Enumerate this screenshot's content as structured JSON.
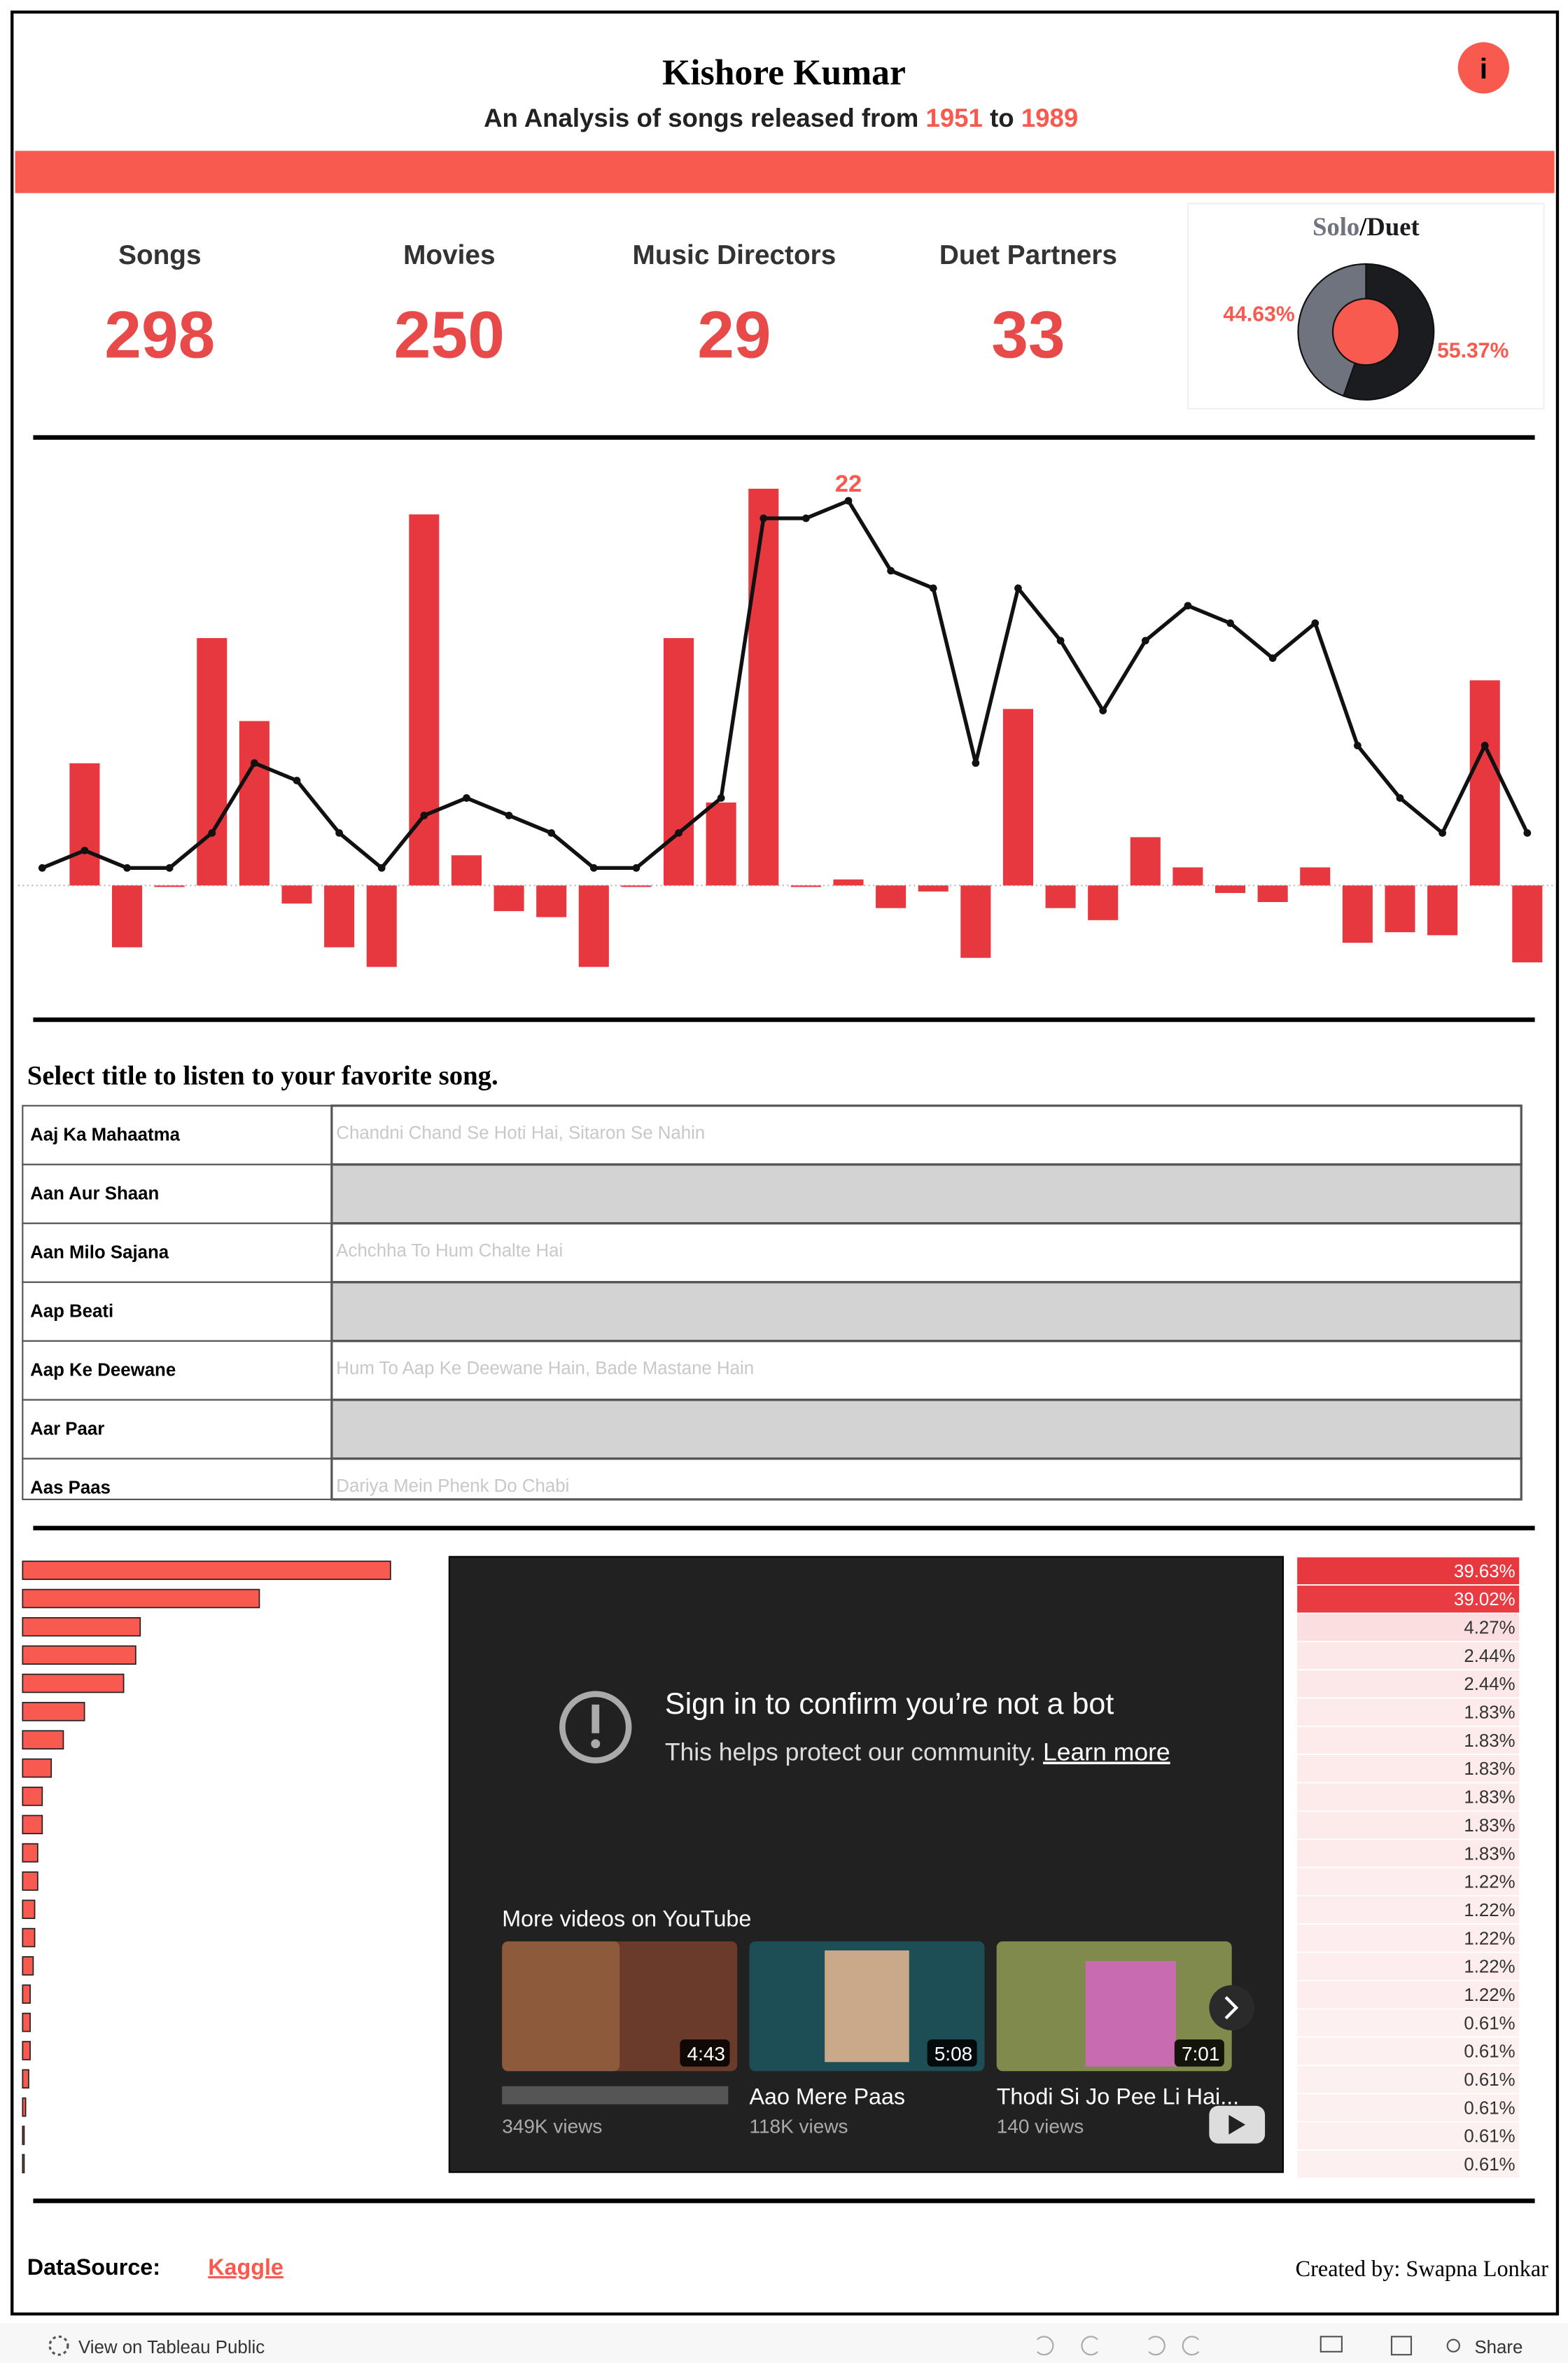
{
  "header": {
    "title": "Kishore Kumar",
    "subtitle": "An Analysis of songs released from",
    "start_year": 1951,
    "connector": "to",
    "end_year": 1989,
    "info_icon": "i"
  },
  "kpis": [
    {
      "label": "Songs",
      "value": 298
    },
    {
      "label": "Movies",
      "value": 250
    },
    {
      "label": "Music Directors",
      "value": 29
    },
    {
      "label": "Duet Partners",
      "value": 33
    }
  ],
  "chart_data": [
    {
      "type": "pie",
      "categories": [
        "Solo",
        "Duet"
      ],
      "title_separator": "/",
      "values": [
        44.63,
        55.37
      ],
      "value_labels": [
        "44.63%",
        "55.37%"
      ],
      "colors": [
        "#6f737d",
        "#1b1c20"
      ],
      "hole_color": "#f95a4f"
    },
    {
      "type": "combo",
      "categories": [
        null,
        null,
        null,
        null,
        null,
        null,
        null,
        null,
        null,
        null,
        null,
        null,
        null,
        null,
        null,
        null,
        null,
        null,
        null,
        null,
        null,
        null,
        null,
        null,
        null,
        null,
        null,
        null,
        null,
        null,
        null,
        null,
        null,
        null,
        null,
        null
      ],
      "series": [
        {
          "type": "bar",
          "axis": "y2",
          "color": "#e8383f",
          "values": [
            0,
            81,
            -41,
            -1,
            164,
            109,
            -12,
            -41,
            -54,
            246,
            20,
            -17,
            -21,
            -54,
            -1,
            164,
            55,
            263,
            -1,
            4,
            -15,
            -4,
            -48,
            117,
            -15,
            -23,
            32,
            12,
            -5,
            -11,
            12,
            -38,
            -31,
            -33,
            136,
            -51
          ]
        },
        {
          "type": "line",
          "color": "#111111",
          "max_label": true,
          "label_color": "#f95a4f",
          "values": [
            1,
            2,
            1,
            1,
            3,
            7,
            6,
            3,
            1,
            4,
            5,
            4,
            3,
            1,
            1,
            3,
            5,
            21,
            21,
            22,
            18,
            17,
            7,
            17,
            14,
            10,
            14,
            16,
            15,
            13,
            15,
            8,
            5,
            3,
            8,
            3
          ]
        }
      ],
      "ylim": [
        -6.3,
        24.76
      ],
      "y2lim": [
        -73,
        287
      ]
    },
    {
      "type": "hbar",
      "color": "#f95a4f",
      "values": [
        244,
        157,
        78,
        75,
        67,
        41,
        27,
        19,
        13,
        13,
        10,
        10,
        8,
        8,
        7,
        5,
        5,
        5,
        4,
        2,
        1,
        1
      ],
      "xlim": [
        0,
        250
      ]
    },
    {
      "type": "heat-list",
      "color": "#e8383f",
      "values": [
        39.63,
        39.02,
        4.27,
        2.44,
        2.44,
        1.83,
        1.83,
        1.83,
        1.83,
        1.83,
        1.83,
        1.22,
        1.22,
        1.22,
        1.22,
        1.22,
        0.61,
        0.61,
        0.61,
        0.61,
        0.61,
        0.61
      ],
      "value_labels": [
        "39.63%",
        "39.02%",
        "4.27%",
        "2.44%",
        "2.44%",
        "1.83%",
        "1.83%",
        "1.83%",
        "1.83%",
        "1.83%",
        "1.83%",
        "1.22%",
        "1.22%",
        "1.22%",
        "1.22%",
        "1.22%",
        "0.61%",
        "0.61%",
        "0.61%",
        "0.61%",
        "0.61%",
        "0.61%"
      ]
    }
  ],
  "song_table": {
    "title": "Select title to listen to your favorite song.",
    "rows": [
      {
        "movie": "Aaj Ka Mahaatma",
        "song": "Chandni Chand Se Hoti Hai, Sitaron Se Nahin"
      },
      {
        "movie": "Aan Aur Shaan"
      },
      {
        "movie": "Aan Milo Sajana",
        "song": "Achchha To Hum Chalte Hai"
      },
      {
        "movie": "Aap Beati"
      },
      {
        "movie": "Aap Ke Deewane",
        "song": "Hum To Aap Ke Deewane Hain, Bade Mastane Hain"
      },
      {
        "movie": "Aar Paar"
      },
      {
        "movie": "Aas Paas",
        "song": "Dariya Mein Phenk Do Chabi"
      }
    ]
  },
  "video": {
    "heading": "Sign in to confirm you’re not a bot",
    "text": "This helps protect our community.",
    "link": "Learn more",
    "more": "More videos on YouTube",
    "videos": [
      {
        "duration": "4:43",
        "views": "349K views"
      },
      {
        "title": "Aao Mere Paas",
        "duration": "5:08",
        "views": "118K views"
      },
      {
        "title": "Thodi Si Jo Pee Li Hai...",
        "duration": "7:01",
        "views": "140 views"
      }
    ]
  },
  "footer": {
    "source_label": "DataSource:",
    "source": "Kaggle",
    "credit": "Created by: Swapna Lonkar"
  },
  "toolbar": {
    "view": "View on Tableau Public",
    "share": "Share"
  }
}
